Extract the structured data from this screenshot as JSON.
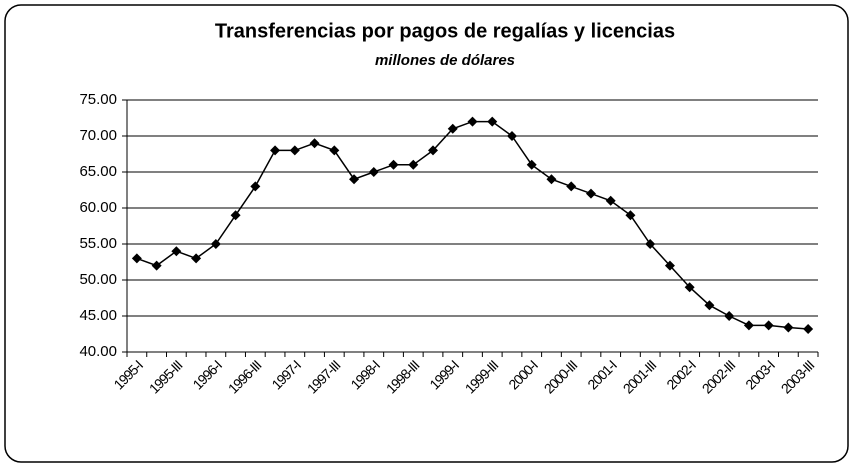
{
  "chart_data": {
    "type": "line",
    "title": "Transferencias por pagos de regalías y licencias",
    "subtitle": "millones de dólares",
    "categories": [
      "1995-I",
      null,
      "1995-III",
      null,
      "1996-I",
      null,
      "1996-III",
      null,
      "1997-I",
      null,
      "1997-III",
      null,
      "1998-I",
      null,
      "1998-III",
      null,
      "1999-I",
      null,
      "1999-III",
      null,
      "2000-I",
      null,
      "2000-III",
      null,
      "2001-I",
      null,
      "2001-III",
      null,
      "2002-I",
      null,
      "2002-III",
      null,
      "2003-I",
      null,
      "2003-III"
    ],
    "values": [
      53,
      52,
      54,
      53,
      55,
      59,
      63,
      68,
      68,
      69,
      68,
      64,
      65,
      66,
      66,
      68,
      71,
      72,
      72,
      70,
      66,
      64,
      63,
      62,
      61,
      59,
      55,
      52,
      49,
      46.5,
      45,
      43.7,
      43.7,
      43.4,
      43.2
    ],
    "color": "#000000",
    "ylim": [
      40,
      75
    ],
    "yticks": [
      {
        "value": 40,
        "label": "40.00"
      },
      {
        "value": 45,
        "label": "45.00"
      },
      {
        "value": 50,
        "label": "50.00"
      },
      {
        "value": 55,
        "label": "55.00"
      },
      {
        "value": 60,
        "label": "60.00"
      },
      {
        "value": 65,
        "label": "65.00"
      },
      {
        "value": 70,
        "label": "70.00"
      },
      {
        "value": 75,
        "label": "75.00"
      }
    ],
    "grid": true
  }
}
